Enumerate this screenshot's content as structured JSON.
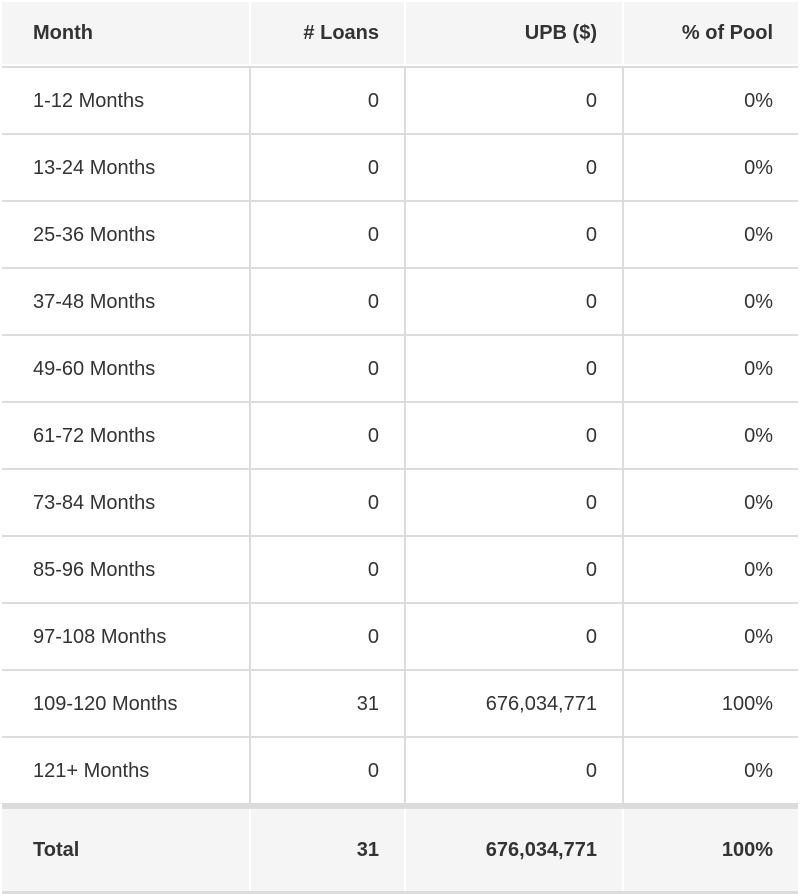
{
  "chart_data": {
    "type": "table",
    "columns": [
      "Month",
      "# Loans",
      "UPB ($)",
      "% of Pool"
    ],
    "rows": [
      [
        "1-12 Months",
        "0",
        "0",
        "0%"
      ],
      [
        "13-24 Months",
        "0",
        "0",
        "0%"
      ],
      [
        "25-36 Months",
        "0",
        "0",
        "0%"
      ],
      [
        "37-48 Months",
        "0",
        "0",
        "0%"
      ],
      [
        "49-60 Months",
        "0",
        "0",
        "0%"
      ],
      [
        "61-72 Months",
        "0",
        "0",
        "0%"
      ],
      [
        "73-84 Months",
        "0",
        "0",
        "0%"
      ],
      [
        "85-96 Months",
        "0",
        "0",
        "0%"
      ],
      [
        "97-108 Months",
        "0",
        "0",
        "0%"
      ],
      [
        "109-120 Months",
        "31",
        "676,034,771",
        "100%"
      ],
      [
        "121+ Months",
        "0",
        "0",
        "0%"
      ]
    ],
    "total": [
      "Total",
      "31",
      "676,034,771",
      "100%"
    ],
    "layout": {
      "column_alignments": [
        "left",
        "right",
        "right",
        "right"
      ],
      "grid": "on"
    }
  },
  "colors": {
    "header_bg": "#f5f5f5",
    "total_bg": "#f5f5f5",
    "row_bg": "#ffffff",
    "border": "#dcdcdc",
    "text": "#333333"
  }
}
